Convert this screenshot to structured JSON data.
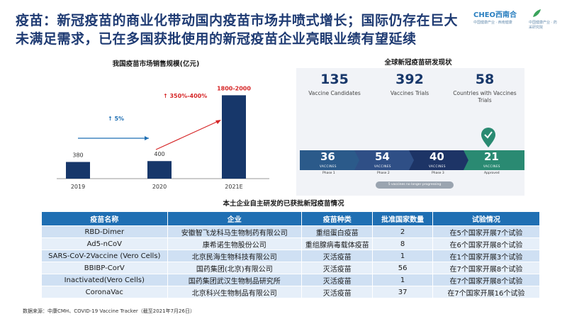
{
  "title": "疫苗：新冠疫苗的商业化带动国内疫苗市场井喷式增长；国际仍存在巨大未满足需求，已在多国获批使用的新冠疫苗企业亮眼业绩有望延续",
  "logo": {
    "brand": "CHEO西南合",
    "sub": "中国健康产业 · 西南健康",
    "partner": "中国健康产业 · 药采研究院"
  },
  "chart_data": {
    "type": "bar",
    "title": "我国疫苗市场销售规模(亿元)",
    "categories": [
      "2019",
      "2020",
      "2021E"
    ],
    "values": [
      380,
      400,
      1900
    ],
    "value_labels": [
      "380",
      "400",
      "1800-2000"
    ],
    "ylim": [
      0,
      2100
    ],
    "color": "#17376a",
    "annotations": [
      "↑ 5%",
      "↑ 350%-400%"
    ]
  },
  "vaccine_status": {
    "title": "全球新冠疫苗研发现状",
    "stats": [
      {
        "num": "135",
        "label": "Vaccine Candidates"
      },
      {
        "num": "392",
        "label": "Vaccines Trials"
      },
      {
        "num": "58",
        "label": "Countries with Vaccines Trials"
      }
    ],
    "phases": [
      {
        "num": "36",
        "sub": "VACCINES",
        "label": "Phase 1",
        "color": "#2b5a8a"
      },
      {
        "num": "54",
        "sub": "VACCINES",
        "label": "Phase 2",
        "color": "#2f4f86"
      },
      {
        "num": "40",
        "sub": "VACCINES",
        "label": "Phase 3",
        "color": "#1d3466"
      },
      {
        "num": "21",
        "sub": "VACCINES",
        "label": "Approved",
        "color": "#2a8a72"
      }
    ],
    "no_longer": "5 vaccines no longer progressing",
    "approved_icon": "check-pin-icon"
  },
  "table": {
    "title": "本土企业自主研发的已获批新冠疫苗情况",
    "headers": [
      "疫苗名称",
      "企业",
      "疫苗种类",
      "批准国家数量",
      "试验情况"
    ],
    "rows": [
      [
        "RBD-Dimer",
        "安徽智飞龙科马生物制药有限公司",
        "重组蛋白疫苗",
        "2",
        "在5个国家开展7个试验"
      ],
      [
        "Ad5-nCoV",
        "康希诺生物股份公司",
        "重组腺病毒载体疫苗",
        "8",
        "在6个国家开展8个试验"
      ],
      [
        "SARS-CoV-2Vaccine (Vero Cells)",
        "北京民海生物科技有限公司",
        "灭活疫苗",
        "1",
        "在1个国家开展3个试验"
      ],
      [
        "BBIBP-CorV",
        "国药集团(北京)有限公司",
        "灭活疫苗",
        "56",
        "在7个国家开展8个试验"
      ],
      [
        "Inactivated(Vero Cells)",
        "国药集团武汉生物制品研究所",
        "灭活疫苗",
        "1",
        "在7个国家开展8个试验"
      ],
      [
        "CoronaVac",
        "北京科兴生物制品有限公司",
        "灭活疫苗",
        "37",
        "在7个国家开展16个试验"
      ]
    ]
  },
  "source": "数据来源：中康CMH、COVID-19 Vaccine Tracker（截至2021年7月26日）"
}
